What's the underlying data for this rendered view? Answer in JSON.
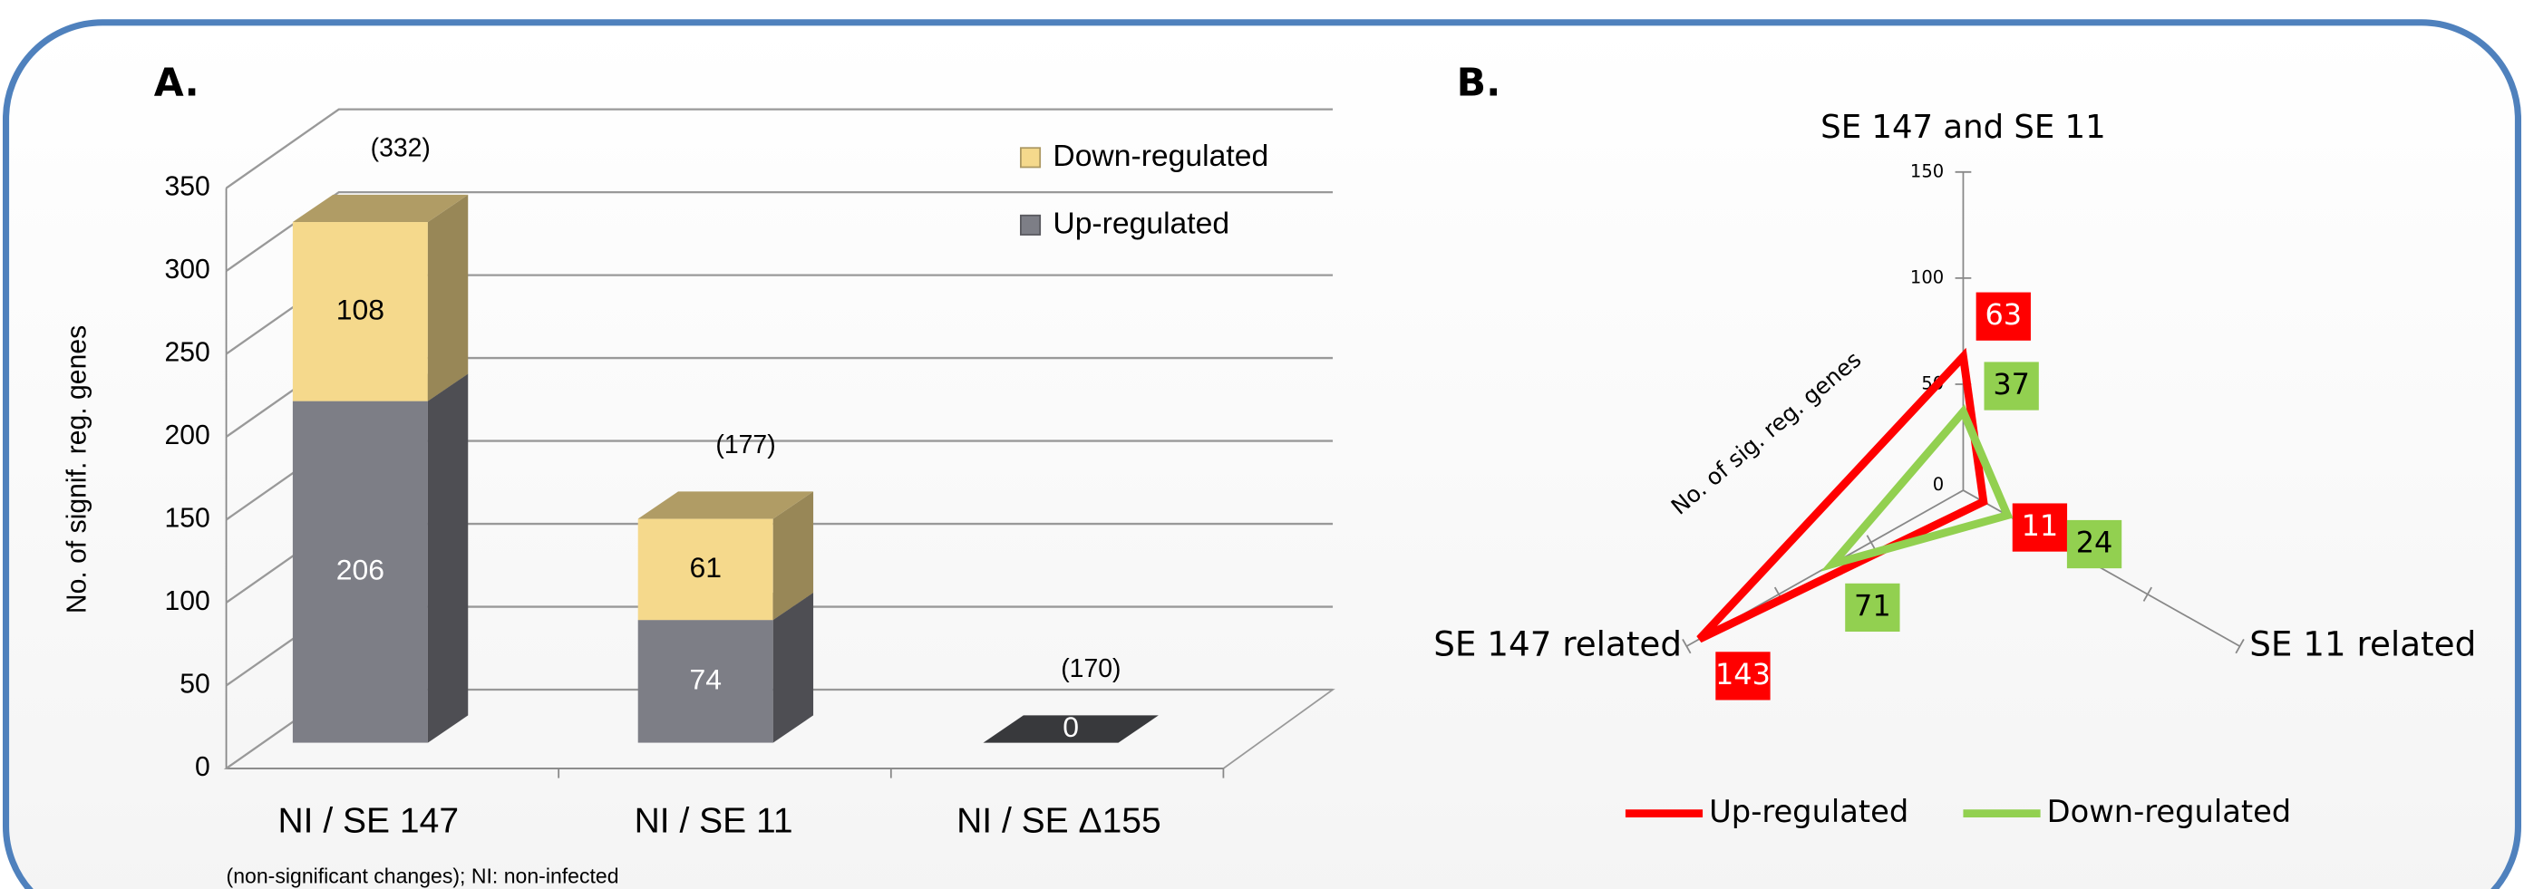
{
  "chart_data": [
    {
      "type": "bar3d",
      "panel": "A.",
      "y_label": "No. of signif. reg. genes",
      "categories": [
        "NI / SE 147",
        "NI / SE 11",
        "NI / SE Δ155"
      ],
      "series": [
        {
          "name": "Up-regulated",
          "color": "#7d7e86",
          "values": [
            206,
            74,
            0
          ]
        },
        {
          "name": "Down-regulated",
          "color": "#f5d98c",
          "values": [
            108,
            61,
            null
          ]
        }
      ],
      "total_labels": [
        "(332)",
        "(177)",
        "(170)"
      ],
      "ylim": [
        0,
        350
      ],
      "yticks": [
        0,
        50,
        100,
        150,
        200,
        250,
        300,
        350
      ],
      "grid": true,
      "legend": "top-right",
      "footnote": "(non-significant changes); NI: non-infected"
    },
    {
      "type": "radar",
      "panel": "B.",
      "title": "SE 147 and SE 11",
      "r_label": "No. of sig. reg. genes",
      "categories": [
        null,
        "SE 11 related",
        "SE 147 related"
      ],
      "series": [
        {
          "name": "Up-regulated",
          "color": "#ff0000",
          "values": [
            63,
            11,
            143
          ]
        },
        {
          "name": "Down-regulated",
          "color": "#92d050",
          "values": [
            37,
            24,
            71
          ]
        }
      ],
      "rlim": [
        0,
        150
      ],
      "rticks": [
        0,
        50,
        100,
        150
      ],
      "legend": "bottom"
    }
  ]
}
